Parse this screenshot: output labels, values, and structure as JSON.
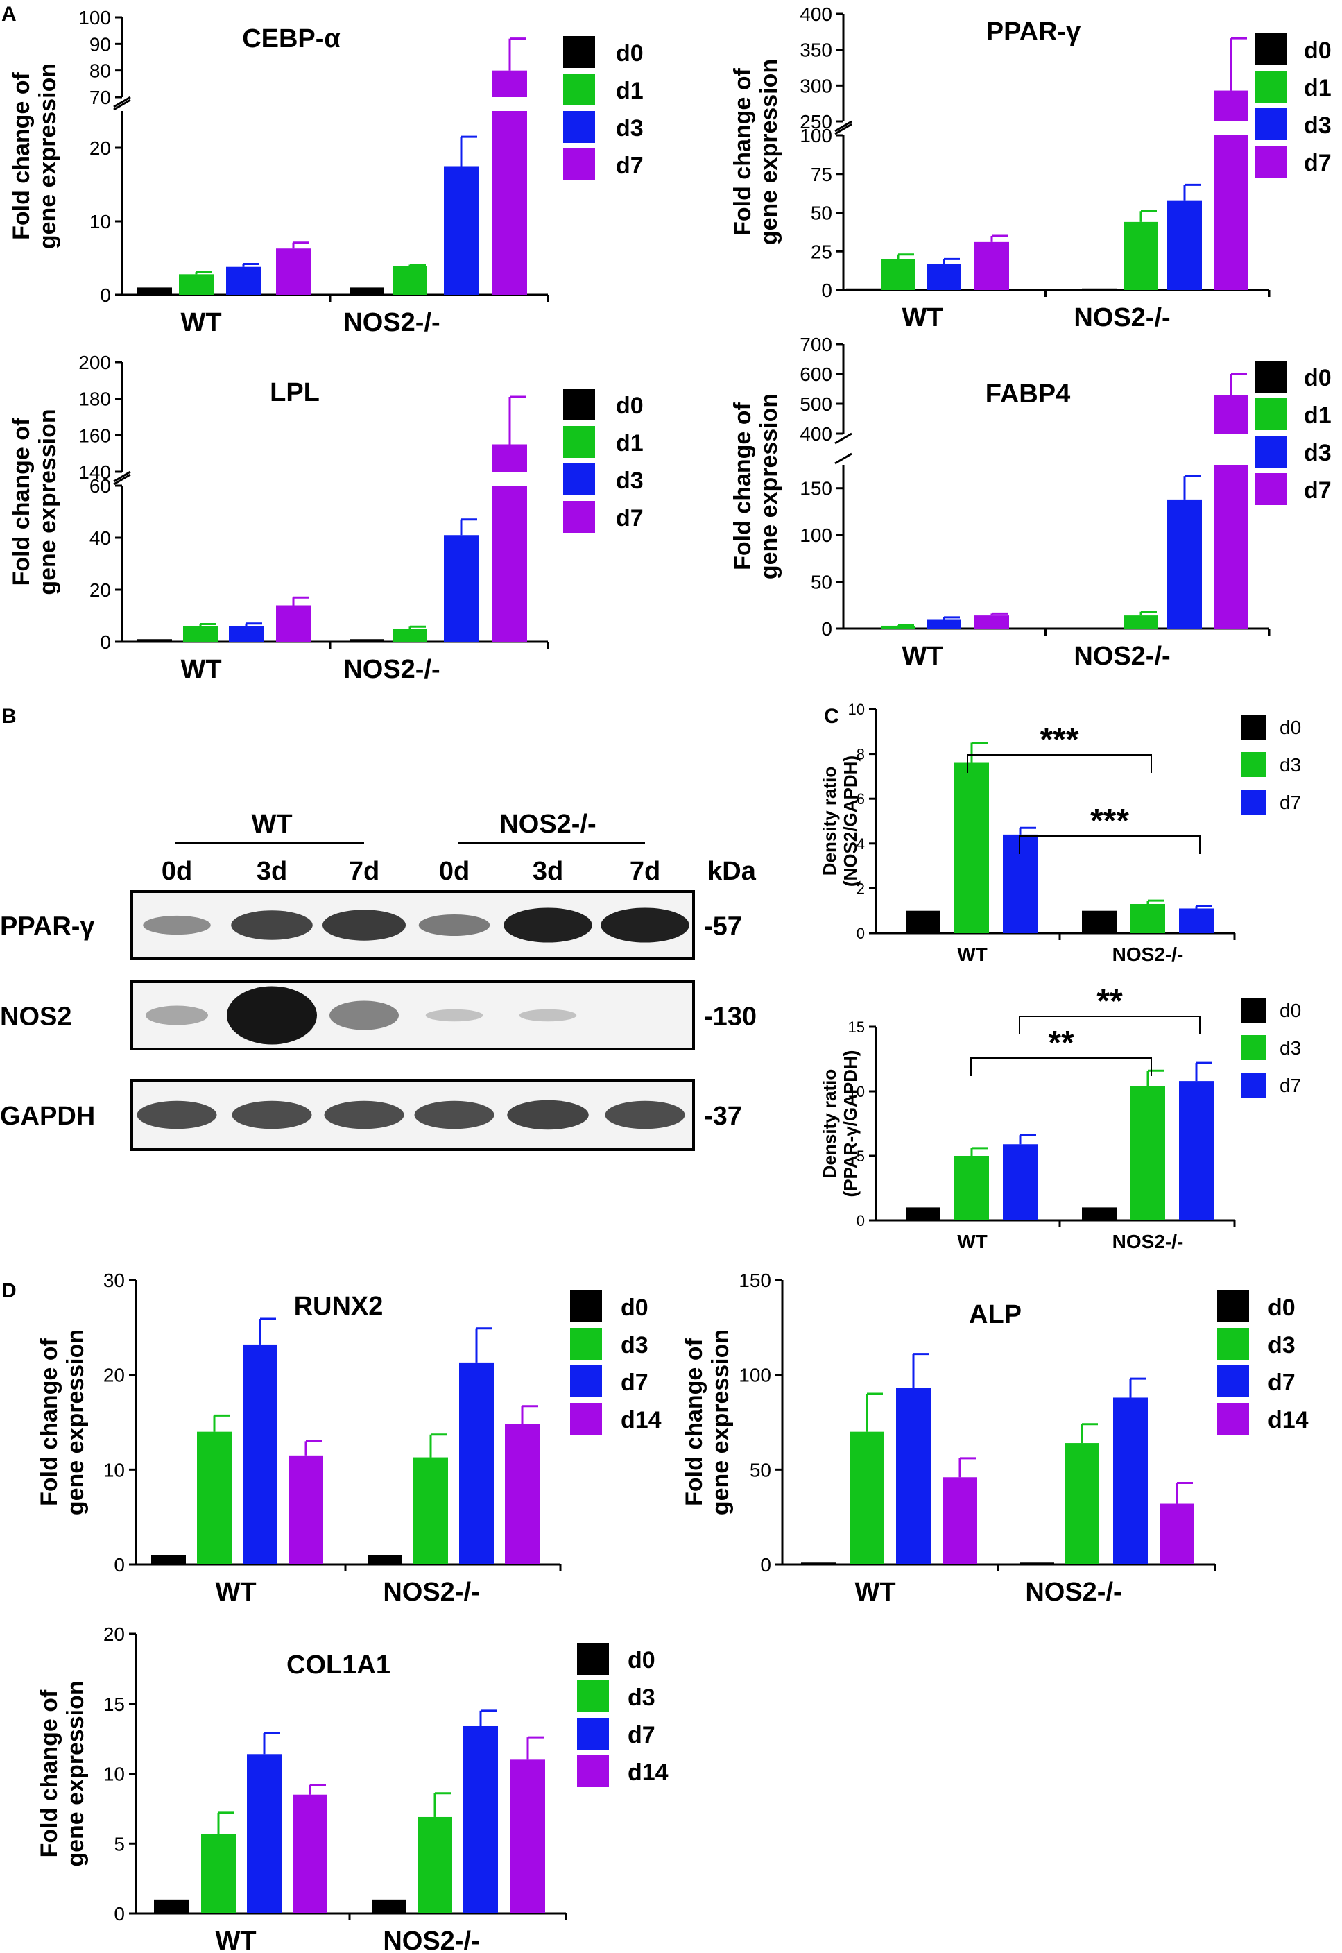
{
  "panels": {
    "a": "A",
    "b": "B",
    "c": "C",
    "d": "D"
  },
  "colors": {
    "d0": "#000000",
    "d1": "#12c41b",
    "d3": "#12c41b",
    "d3_blue": "#0f1ff0",
    "d7_purple": "#a40ae6",
    "d7_blue": "#0f1ff0",
    "d14": "#a40ae6"
  },
  "chart_data": [
    {
      "id": "cebpa",
      "type": "bar",
      "title": "CEBP-α",
      "ylabel": [
        "Fold change of",
        "gene expression"
      ],
      "categories": [
        "WT",
        "NOS2-/-"
      ],
      "legend": [
        "d0",
        "d1",
        "d3",
        "d7"
      ],
      "series_colors": [
        "#000000",
        "#12c41b",
        "#0f1ff0",
        "#a40ae6"
      ],
      "values": [
        [
          1,
          2.8,
          3.8,
          6.3
        ],
        [
          1,
          3.9,
          17.5,
          80
        ]
      ],
      "errors": [
        [
          0,
          0.3,
          0.4,
          0.8
        ],
        [
          0,
          0.2,
          4,
          12
        ]
      ],
      "broken_axis": {
        "lower": [
          0,
          25
        ],
        "upper": [
          70,
          100
        ]
      },
      "ticks_lower": [
        "0",
        "10",
        "20"
      ],
      "ticks_upper": [
        "70",
        "80",
        "90",
        "100"
      ]
    },
    {
      "id": "pparg",
      "type": "bar",
      "title": "PPAR-γ",
      "ylabel": [
        "Fold change of",
        "gene expression"
      ],
      "categories": [
        "WT",
        "NOS2-/-"
      ],
      "legend": [
        "d0",
        "d1",
        "d3",
        "d7"
      ],
      "series_colors": [
        "#000000",
        "#12c41b",
        "#0f1ff0",
        "#a40ae6"
      ],
      "values": [
        [
          1,
          20,
          17,
          31
        ],
        [
          1,
          44,
          58,
          293
        ]
      ],
      "errors": [
        [
          0,
          3,
          3,
          4
        ],
        [
          0,
          7,
          10,
          73
        ]
      ],
      "broken_axis": {
        "lower": [
          0,
          100
        ],
        "upper": [
          250,
          400
        ]
      },
      "ticks_lower": [
        "0",
        "25",
        "50",
        "75",
        "100"
      ],
      "ticks_upper": [
        "250",
        "300",
        "350",
        "400"
      ]
    },
    {
      "id": "lpl",
      "type": "bar",
      "title": "LPL",
      "ylabel": [
        "Fold change of",
        "gene expression"
      ],
      "categories": [
        "WT",
        "NOS2-/-"
      ],
      "legend": [
        "d0",
        "d1",
        "d3",
        "d7"
      ],
      "series_colors": [
        "#000000",
        "#12c41b",
        "#0f1ff0",
        "#a40ae6"
      ],
      "values": [
        [
          1,
          6,
          6,
          14
        ],
        [
          1,
          5,
          41,
          155
        ]
      ],
      "errors": [
        [
          0,
          0.8,
          1,
          3
        ],
        [
          0,
          0.8,
          6,
          26
        ]
      ],
      "broken_axis": {
        "lower": [
          0,
          60
        ],
        "upper": [
          140,
          200
        ]
      },
      "ticks_lower": [
        "0",
        "20",
        "40",
        "60"
      ],
      "ticks_upper": [
        "140",
        "160",
        "180",
        "200"
      ]
    },
    {
      "id": "fabp4",
      "type": "bar",
      "title": "FABP4",
      "ylabel": [
        "Fold change of",
        "gene expression"
      ],
      "categories": [
        "WT",
        "NOS2-/-"
      ],
      "legend": [
        "d0",
        "d1",
        "d3",
        "d7"
      ],
      "series_colors": [
        "#000000",
        "#12c41b",
        "#0f1ff0",
        "#a40ae6"
      ],
      "values": [
        [
          1,
          3,
          10,
          14
        ],
        [
          1,
          14,
          138,
          530
        ]
      ],
      "errors": [
        [
          0,
          0.5,
          2,
          2
        ],
        [
          0,
          4,
          25,
          70
        ]
      ],
      "broken_axis": {
        "lower": [
          0,
          175
        ],
        "upper": [
          400,
          700
        ]
      },
      "ticks_lower": [
        "0",
        "50",
        "100",
        "150"
      ],
      "ticks_upper": [
        "400",
        "500",
        "600",
        "700"
      ]
    },
    {
      "id": "nos2_density",
      "type": "bar",
      "title": "",
      "ylabel": [
        "Density ratio",
        "(NOS2/GAPDH)"
      ],
      "categories": [
        "WT",
        "NOS2-/-"
      ],
      "legend": [
        "d0",
        "d3",
        "d7"
      ],
      "series_colors": [
        "#000000",
        "#12c41b",
        "#0f1ff0"
      ],
      "values": [
        [
          1,
          7.6,
          4.4
        ],
        [
          1,
          1.3,
          1.1
        ]
      ],
      "errors": [
        [
          0,
          0.9,
          0.3
        ],
        [
          0,
          0.15,
          0.1
        ]
      ],
      "ylim": [
        0,
        10
      ],
      "ticks": [
        "0",
        "2",
        "4",
        "6",
        "8",
        "10"
      ],
      "significance": [
        "***",
        "***"
      ]
    },
    {
      "id": "pparg_density",
      "type": "bar",
      "title": "",
      "ylabel": [
        "Density ratio",
        "(PPAR-γ/GAPDH)"
      ],
      "categories": [
        "WT",
        "NOS2-/-"
      ],
      "legend": [
        "d0",
        "d3",
        "d7"
      ],
      "series_colors": [
        "#000000",
        "#12c41b",
        "#0f1ff0"
      ],
      "values": [
        [
          1,
          5,
          5.9
        ],
        [
          1,
          10.4,
          10.8
        ]
      ],
      "errors": [
        [
          0,
          0.6,
          0.7
        ],
        [
          0,
          1.2,
          1.4
        ]
      ],
      "ylim": [
        0,
        15
      ],
      "ticks": [
        "0",
        "5",
        "10",
        "15"
      ],
      "significance": [
        "**",
        "**"
      ]
    },
    {
      "id": "runx2",
      "type": "bar",
      "title": "RUNX2",
      "ylabel": [
        "Fold change of",
        "gene expression"
      ],
      "categories": [
        "WT",
        "NOS2-/-"
      ],
      "legend": [
        "d0",
        "d3",
        "d7",
        "d14"
      ],
      "series_colors": [
        "#000000",
        "#12c41b",
        "#0f1ff0",
        "#a40ae6"
      ],
      "values": [
        [
          1,
          14,
          23.2,
          11.5
        ],
        [
          1,
          11.3,
          21.3,
          14.8
        ]
      ],
      "errors": [
        [
          0,
          1.7,
          2.7,
          1.5
        ],
        [
          0,
          2.4,
          3.6,
          1.9
        ]
      ],
      "ylim": [
        0,
        30
      ],
      "ticks": [
        "0",
        "10",
        "20",
        "30"
      ]
    },
    {
      "id": "alp",
      "type": "bar",
      "title": "ALP",
      "ylabel": [
        "Fold change of",
        "gene expression"
      ],
      "categories": [
        "WT",
        "NOS2-/-"
      ],
      "legend": [
        "d0",
        "d3",
        "d7",
        "d14"
      ],
      "series_colors": [
        "#000000",
        "#12c41b",
        "#0f1ff0",
        "#a40ae6"
      ],
      "values": [
        [
          1,
          70,
          93,
          46
        ],
        [
          1,
          64,
          88,
          32
        ]
      ],
      "errors": [
        [
          0,
          20,
          18,
          10
        ],
        [
          0,
          10,
          10,
          11
        ]
      ],
      "ylim": [
        0,
        150
      ],
      "ticks": [
        "0",
        "50",
        "100",
        "150"
      ]
    },
    {
      "id": "col1a1",
      "type": "bar",
      "title": "COL1A1",
      "ylabel": [
        "Fold change of",
        "gene expression"
      ],
      "categories": [
        "WT",
        "NOS2-/-"
      ],
      "legend": [
        "d0",
        "d3",
        "d7",
        "d14"
      ],
      "series_colors": [
        "#000000",
        "#12c41b",
        "#0f1ff0",
        "#a40ae6"
      ],
      "values": [
        [
          1,
          5.7,
          11.4,
          8.5
        ],
        [
          1,
          6.9,
          13.4,
          11
        ]
      ],
      "errors": [
        [
          0,
          1.5,
          1.5,
          0.7
        ],
        [
          0,
          1.7,
          1.1,
          1.6
        ]
      ],
      "ylim": [
        0,
        20
      ],
      "ticks": [
        "0",
        "5",
        "10",
        "15",
        "20"
      ]
    }
  ],
  "blot": {
    "group_labels": [
      "WT",
      "NOS2-/-"
    ],
    "lane_labels": [
      "0d",
      "3d",
      "7d",
      "0d",
      "3d",
      "7d"
    ],
    "kda_label": "kDa",
    "rows": [
      {
        "protein": "PPAR-γ",
        "kda": "-57",
        "intensities": [
          0.35,
          0.75,
          0.8,
          0.45,
          0.95,
          0.95
        ]
      },
      {
        "protein": "NOS2",
        "kda": "-130",
        "intensities": [
          0.2,
          1.0,
          0.4,
          0.05,
          0.05,
          0.0
        ]
      },
      {
        "protein": "GAPDH",
        "kda": "-37",
        "intensities": [
          0.7,
          0.7,
          0.7,
          0.7,
          0.75,
          0.7
        ]
      }
    ]
  }
}
